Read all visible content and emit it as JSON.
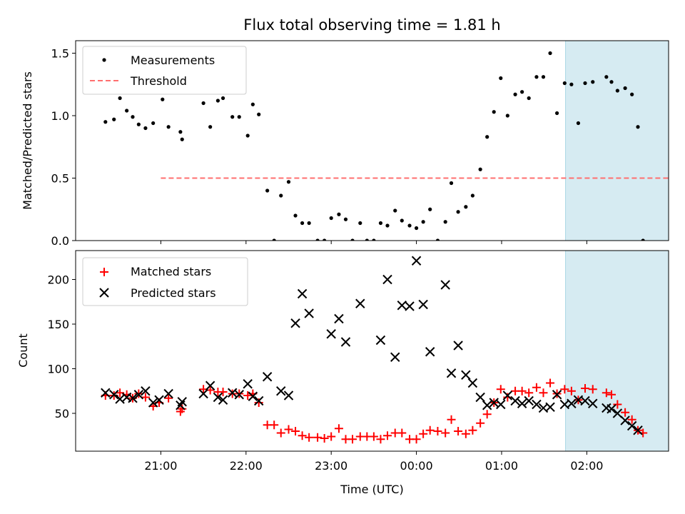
{
  "chart_data": {
    "type": "scatter",
    "title": "Flux total observing time = 1.81 h",
    "xlabel": "Time (UTC)",
    "x_tick_labels": [
      "21:00",
      "22:00",
      "23:00",
      "00:00",
      "01:00",
      "02:00"
    ],
    "x_tick_hours": [
      21,
      22,
      23,
      24,
      25,
      26
    ],
    "xlim_hours": [
      20.0,
      26.96
    ],
    "highlight_span_hours": [
      25.75,
      27.57
    ],
    "colors": {
      "highlight": "#add8e6",
      "threshold": "#ff6f6f",
      "matched": "#ff0000",
      "predicted": "#000000",
      "measurements": "#000000"
    },
    "top": {
      "ylabel": "Matched/Predicted stars",
      "ylim": [
        0,
        1.6
      ],
      "y_ticks": [
        0,
        0.5,
        1.0,
        1.5
      ],
      "y_tick_labels": [
        "0.0",
        "0.5",
        "1.0",
        "1.5"
      ],
      "legend": {
        "placement": "upper-left",
        "measurements": "Measurements",
        "threshold": "Threshold"
      },
      "threshold": {
        "value": 0.5,
        "x_range_hours": [
          21.0,
          27.5
        ]
      },
      "measurements": [
        [
          20.35,
          0.95
        ],
        [
          20.45,
          0.97
        ],
        [
          20.52,
          1.14
        ],
        [
          20.6,
          1.04
        ],
        [
          20.67,
          0.99
        ],
        [
          20.74,
          0.93
        ],
        [
          20.82,
          0.9
        ],
        [
          20.91,
          0.94
        ],
        [
          21.02,
          1.13
        ],
        [
          21.09,
          0.91
        ],
        [
          21.23,
          0.87
        ],
        [
          21.25,
          0.81
        ],
        [
          21.5,
          1.1
        ],
        [
          21.58,
          0.91
        ],
        [
          21.67,
          1.12
        ],
        [
          21.73,
          1.14
        ],
        [
          21.84,
          0.99
        ],
        [
          21.92,
          0.99
        ],
        [
          22.02,
          0.84
        ],
        [
          22.08,
          1.09
        ],
        [
          22.15,
          1.01
        ],
        [
          22.25,
          0.4
        ],
        [
          22.33,
          0.0
        ],
        [
          22.41,
          0.36
        ],
        [
          22.5,
          0.47
        ],
        [
          22.58,
          0.2
        ],
        [
          22.66,
          0.14
        ],
        [
          22.74,
          0.14
        ],
        [
          22.84,
          0.0
        ],
        [
          22.92,
          0.0
        ],
        [
          23.0,
          0.18
        ],
        [
          23.09,
          0.21
        ],
        [
          23.17,
          0.17
        ],
        [
          23.25,
          0.0
        ],
        [
          23.34,
          0.14
        ],
        [
          23.42,
          0.0
        ],
        [
          23.5,
          0.0
        ],
        [
          23.58,
          0.14
        ],
        [
          23.66,
          0.12
        ],
        [
          23.75,
          0.24
        ],
        [
          23.83,
          0.16
        ],
        [
          23.92,
          0.12
        ],
        [
          24.0,
          0.1
        ],
        [
          24.08,
          0.15
        ],
        [
          24.16,
          0.25
        ],
        [
          24.25,
          0.0
        ],
        [
          24.34,
          0.15
        ],
        [
          24.41,
          0.46
        ],
        [
          24.49,
          0.23
        ],
        [
          24.58,
          0.27
        ],
        [
          24.66,
          0.36
        ],
        [
          24.75,
          0.57
        ],
        [
          24.83,
          0.83
        ],
        [
          24.91,
          1.03
        ],
        [
          24.99,
          1.3
        ],
        [
          25.07,
          1.0
        ],
        [
          25.16,
          1.17
        ],
        [
          25.24,
          1.19
        ],
        [
          25.32,
          1.14
        ],
        [
          25.41,
          1.31
        ],
        [
          25.49,
          1.31
        ],
        [
          25.57,
          1.5
        ],
        [
          25.65,
          1.02
        ],
        [
          25.74,
          1.26
        ],
        [
          25.82,
          1.25
        ],
        [
          25.9,
          0.94
        ],
        [
          25.98,
          1.26
        ],
        [
          26.07,
          1.27
        ],
        [
          26.23,
          1.31
        ],
        [
          26.29,
          1.27
        ],
        [
          26.36,
          1.2
        ],
        [
          26.45,
          1.22
        ],
        [
          26.53,
          1.17
        ],
        [
          26.6,
          0.91
        ],
        [
          26.66,
          0.0
        ]
      ]
    },
    "bottom": {
      "ylabel": "Count",
      "ylim": [
        7.6,
        232.4
      ],
      "y_ticks": [
        50,
        100,
        150,
        200
      ],
      "y_tick_labels": [
        "50",
        "100",
        "150",
        "200"
      ],
      "legend": {
        "placement": "upper-left",
        "matched": "Matched stars",
        "predicted": "Predicted stars"
      },
      "series": [
        {
          "name": "Matched stars",
          "points": [
            [
              20.35,
              70
            ],
            [
              20.45,
              70
            ],
            [
              20.52,
              73
            ],
            [
              20.6,
              71
            ],
            [
              20.67,
              67
            ],
            [
              20.74,
              72
            ],
            [
              20.82,
              68
            ],
            [
              20.91,
              58
            ],
            [
              20.98,
              62
            ],
            [
              21.09,
              67
            ],
            [
              21.23,
              52
            ],
            [
              21.25,
              55
            ],
            [
              21.5,
              77
            ],
            [
              21.58,
              76
            ],
            [
              21.67,
              74
            ],
            [
              21.73,
              74
            ],
            [
              21.84,
              72
            ],
            [
              21.92,
              72
            ],
            [
              22.02,
              70
            ],
            [
              22.08,
              72
            ],
            [
              22.15,
              62
            ],
            [
              22.25,
              37
            ],
            [
              22.33,
              37
            ],
            [
              22.41,
              28
            ],
            [
              22.5,
              32
            ],
            [
              22.58,
              30
            ],
            [
              22.66,
              25
            ],
            [
              22.74,
              23
            ],
            [
              22.84,
              23
            ],
            [
              22.92,
              22
            ],
            [
              23.0,
              24
            ],
            [
              23.09,
              33
            ],
            [
              23.17,
              21
            ],
            [
              23.25,
              21
            ],
            [
              23.34,
              24
            ],
            [
              23.42,
              24
            ],
            [
              23.5,
              24
            ],
            [
              23.58,
              21
            ],
            [
              23.66,
              25
            ],
            [
              23.75,
              28
            ],
            [
              23.83,
              28
            ],
            [
              23.92,
              21
            ],
            [
              24.0,
              21
            ],
            [
              24.08,
              27
            ],
            [
              24.16,
              31
            ],
            [
              24.25,
              30
            ],
            [
              24.34,
              28
            ],
            [
              24.41,
              43
            ],
            [
              24.49,
              30
            ],
            [
              24.58,
              27
            ],
            [
              24.66,
              31
            ],
            [
              24.75,
              39
            ],
            [
              24.83,
              49
            ],
            [
              24.91,
              62
            ],
            [
              24.99,
              77
            ],
            [
              25.07,
              68
            ],
            [
              25.16,
              75
            ],
            [
              25.24,
              75
            ],
            [
              25.32,
              73
            ],
            [
              25.41,
              79
            ],
            [
              25.49,
              73
            ],
            [
              25.57,
              84
            ],
            [
              25.65,
              72
            ],
            [
              25.74,
              77
            ],
            [
              25.82,
              75
            ],
            [
              25.9,
              65
            ],
            [
              25.98,
              78
            ],
            [
              26.07,
              77
            ],
            [
              26.23,
              73
            ],
            [
              26.29,
              71
            ],
            [
              26.36,
              60
            ],
            [
              26.45,
              51
            ],
            [
              26.53,
              43
            ],
            [
              26.6,
              31
            ],
            [
              26.66,
              28
            ]
          ]
        },
        {
          "name": "Predicted stars",
          "points": [
            [
              20.35,
              73
            ],
            [
              20.45,
              71
            ],
            [
              20.52,
              66
            ],
            [
              20.6,
              68
            ],
            [
              20.67,
              67
            ],
            [
              20.74,
              71
            ],
            [
              20.82,
              75
            ],
            [
              20.91,
              62
            ],
            [
              20.98,
              65
            ],
            [
              21.09,
              72
            ],
            [
              21.23,
              59
            ],
            [
              21.25,
              63
            ],
            [
              21.5,
              72
            ],
            [
              21.58,
              81
            ],
            [
              21.67,
              68
            ],
            [
              21.73,
              65
            ],
            [
              21.84,
              73
            ],
            [
              21.92,
              71
            ],
            [
              22.02,
              83
            ],
            [
              22.08,
              69
            ],
            [
              22.15,
              64
            ],
            [
              22.25,
              91
            ],
            [
              22.41,
              75
            ],
            [
              22.5,
              70
            ],
            [
              22.58,
              151
            ],
            [
              22.66,
              184
            ],
            [
              22.74,
              162
            ],
            [
              23.0,
              139
            ],
            [
              23.09,
              156
            ],
            [
              23.17,
              130
            ],
            [
              23.34,
              173
            ],
            [
              23.58,
              132
            ],
            [
              23.66,
              200
            ],
            [
              23.75,
              113
            ],
            [
              23.83,
              171
            ],
            [
              23.92,
              170
            ],
            [
              24.0,
              221
            ],
            [
              24.08,
              172
            ],
            [
              24.16,
              119
            ],
            [
              24.34,
              194
            ],
            [
              24.41,
              95
            ],
            [
              24.49,
              126
            ],
            [
              24.58,
              93
            ],
            [
              24.66,
              84
            ],
            [
              24.75,
              68
            ],
            [
              24.83,
              59
            ],
            [
              24.91,
              62
            ],
            [
              24.99,
              60
            ],
            [
              25.07,
              70
            ],
            [
              25.16,
              64
            ],
            [
              25.24,
              61
            ],
            [
              25.32,
              64
            ],
            [
              25.41,
              60
            ],
            [
              25.49,
              56
            ],
            [
              25.57,
              57
            ],
            [
              25.65,
              71
            ],
            [
              25.74,
              60
            ],
            [
              25.82,
              61
            ],
            [
              25.9,
              65
            ],
            [
              25.98,
              64
            ],
            [
              26.07,
              61
            ],
            [
              26.23,
              56
            ],
            [
              26.29,
              55
            ],
            [
              26.36,
              50
            ],
            [
              26.45,
              42
            ],
            [
              26.53,
              36
            ],
            [
              26.6,
              31
            ]
          ]
        }
      ]
    }
  }
}
